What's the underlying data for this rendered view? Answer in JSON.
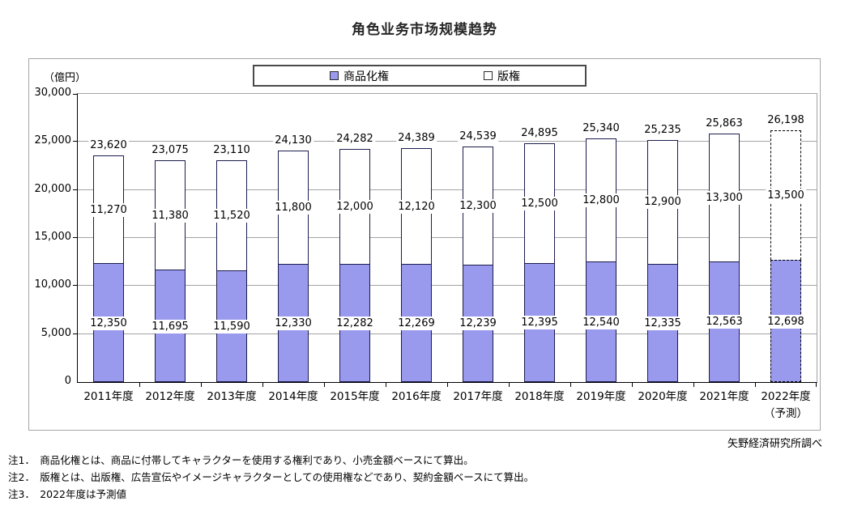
{
  "title": "角色业务市场规模趋势",
  "unit_label": "（億円）",
  "source": "矢野経済研究所調べ",
  "notes": [
    "注1．　商品化権とは、商品に付帯してキャラクターを使用する権利であり、小売金額ベースにて算出。",
    "注2．　版権とは、出版権、広告宣伝やイメージキャラクターとしての使用権などであり、契約金額ベースにて算出。",
    "注3．　2022年度は予測値"
  ],
  "chart_data": {
    "type": "bar",
    "stacked": true,
    "legend_position": "top",
    "grid": true,
    "categories": [
      "2011年度",
      "2012年度",
      "2013年度",
      "2014年度",
      "2015年度",
      "2016年度",
      "2017年度",
      "2018年度",
      "2019年度",
      "2020年度",
      "2021年度",
      "2022年度"
    ],
    "last_category_sub": "（予測）",
    "forecast_index": 11,
    "series": [
      {
        "name": "商品化権",
        "color": "#9999ee",
        "values": [
          12350,
          11695,
          11590,
          12330,
          12282,
          12269,
          12239,
          12395,
          12540,
          12335,
          12563,
          12698
        ]
      },
      {
        "name": "版権",
        "color": "#ffffff",
        "values": [
          11270,
          11380,
          11520,
          11800,
          12000,
          12120,
          12300,
          12500,
          12800,
          12900,
          13300,
          13500
        ]
      }
    ],
    "totals": [
      23620,
      23075,
      23110,
      24130,
      24282,
      24389,
      24539,
      24895,
      25340,
      25235,
      25863,
      26198
    ],
    "ylabel": "（億円）",
    "ylim": [
      0,
      30000
    ],
    "ytick_step": 5000,
    "ytick_labels": [
      "0",
      "5,000",
      "10,000",
      "15,000",
      "20,000",
      "25,000",
      "30,000"
    ]
  }
}
